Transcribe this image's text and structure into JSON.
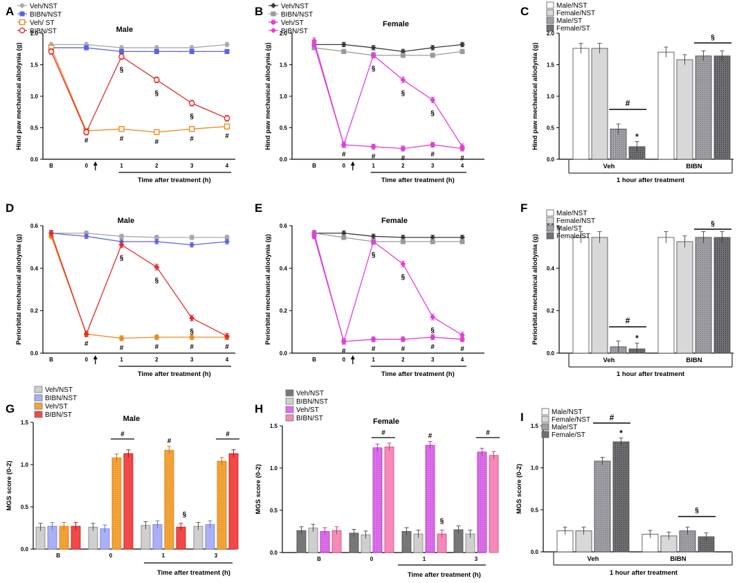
{
  "colors": {
    "veh_nst": "#a8a8a8",
    "bibn_nst_male": "#5a64e8",
    "veh_st_male": "#f08a1c",
    "bibn_st_male": "#e42a2a",
    "veh_nst_female": "#3a3a3a",
    "bibn_nst_female": "#9a9a9a",
    "st_female": "#e040d8",
    "bar_male_nst": "#ffffff",
    "bar_female_nst": "#d6d6d6",
    "bar_male_st": "#9a9aa0",
    "bar_female_st": "#6a6a6e",
    "mgs_veh_nst_m": "#cfcfcf",
    "mgs_bibn_nst_m": "#aab0f5",
    "mgs_veh_st_m": "#f5a63a",
    "mgs_bibn_st_m": "#f24848",
    "mgs_veh_nst_f": "#777777",
    "mgs_bibn_nst_f": "#cfcfcf",
    "mgs_veh_st_f": "#e070ec",
    "mgs_bibn_st_f": "#f58ab8"
  },
  "chart_data": [
    {
      "id": "A",
      "type": "line",
      "title": "Male",
      "ylabel": "Hind paw mechanical allodynia (g)",
      "xlabel": "Time after treatment (h)",
      "categories": [
        "B",
        "0",
        "1",
        "2",
        "3",
        "4"
      ],
      "ylim": [
        0,
        2.0
      ],
      "yticks": [
        "0.0",
        "0.5",
        "1.0",
        "1.5",
        "2.0"
      ],
      "series": [
        {
          "name": "Veh/NST",
          "values": [
            1.82,
            1.82,
            1.77,
            1.77,
            1.77,
            1.82
          ]
        },
        {
          "name": "BIBN/NST",
          "values": [
            1.77,
            1.77,
            1.71,
            1.71,
            1.71,
            1.71
          ]
        },
        {
          "name": "Veh/ ST",
          "values": [
            1.77,
            0.45,
            0.48,
            0.43,
            0.48,
            0.52
          ]
        },
        {
          "name": "BIBN/ST",
          "values": [
            1.71,
            0.43,
            1.63,
            1.26,
            0.89,
            0.65
          ]
        }
      ],
      "annotations": {
        "hash": [
          "#",
          "#",
          "#",
          "#",
          "#"
        ],
        "section": [
          "§",
          "§",
          "§"
        ]
      }
    },
    {
      "id": "B",
      "type": "line",
      "title": "Female",
      "ylabel": "Hind paw mechanical allodynia (g)",
      "xlabel": "Time after treatment (h)",
      "categories": [
        "B",
        "0",
        "1",
        "2",
        "3",
        "4"
      ],
      "ylim": [
        0,
        2.0
      ],
      "yticks": [
        "0.0",
        "0.5",
        "1.0",
        "1.5",
        "2.0"
      ],
      "series": [
        {
          "name": "Veh/NST",
          "values": [
            1.82,
            1.82,
            1.77,
            1.71,
            1.77,
            1.82
          ]
        },
        {
          "name": "BIBN/NST",
          "values": [
            1.77,
            1.71,
            1.65,
            1.65,
            1.65,
            1.71
          ]
        },
        {
          "name": "Veh/ST",
          "values": [
            1.82,
            0.23,
            0.2,
            0.17,
            0.23,
            0.17
          ]
        },
        {
          "name": "BIBN/ST",
          "values": [
            1.88,
            0.23,
            1.65,
            1.26,
            0.94,
            0.2
          ]
        }
      ],
      "annotations": {
        "hash": [
          "#",
          "#",
          "#",
          "#",
          "#"
        ],
        "section": [
          "§",
          "§",
          "§"
        ]
      }
    },
    {
      "id": "C",
      "type": "bar",
      "ylabel": "Hind paw mechanical allodynia (g)",
      "xlabel": "1 hour after treatment",
      "groups": [
        "Veh",
        "BIBN"
      ],
      "ylim": [
        0,
        2.0
      ],
      "yticks": [
        "0.0",
        "0.5",
        "1.0",
        "1.5",
        "2.0"
      ],
      "series": [
        {
          "name": "Male/NST",
          "values": [
            1.76,
            1.7
          ]
        },
        {
          "name": "Female/NST",
          "values": [
            1.76,
            1.58
          ]
        },
        {
          "name": "Male/ST",
          "values": [
            0.48,
            1.64
          ]
        },
        {
          "name": "Female/ST",
          "values": [
            0.2,
            1.64
          ]
        }
      ],
      "annotations": {
        "hash": "#",
        "star": "*",
        "section": "§"
      }
    },
    {
      "id": "D",
      "type": "line",
      "title": "Male",
      "ylabel": "Periorbital mechanical allodynia (g)",
      "xlabel": "Time after treatment (h)",
      "categories": [
        "B",
        "0",
        "1",
        "2",
        "3",
        "4"
      ],
      "ylim": [
        0,
        0.6
      ],
      "yticks": [
        "0.0",
        "0.2",
        "0.4",
        "0.6"
      ],
      "series": [
        {
          "name": "Veh/NST",
          "values": [
            0.565,
            0.565,
            0.55,
            0.545,
            0.545,
            0.545
          ]
        },
        {
          "name": "BIBN/NST",
          "values": [
            0.565,
            0.55,
            0.525,
            0.525,
            0.51,
            0.525
          ]
        },
        {
          "name": "Veh/ST",
          "values": [
            0.55,
            0.09,
            0.07,
            0.075,
            0.075,
            0.075
          ]
        },
        {
          "name": "BIBN/ST",
          "values": [
            0.565,
            0.09,
            0.51,
            0.405,
            0.165,
            0.08
          ]
        }
      ],
      "annotations": {
        "hash": [
          "#",
          "#",
          "#",
          "#",
          "#"
        ],
        "section": [
          "§",
          "§",
          "§"
        ]
      }
    },
    {
      "id": "E",
      "type": "line",
      "title": "Female",
      "ylabel": "Periorbital mechanical allodynia (g)",
      "xlabel": "Time after treatment (h)",
      "categories": [
        "B",
        "0",
        "1",
        "2",
        "3",
        "4"
      ],
      "ylim": [
        0,
        0.6
      ],
      "yticks": [
        "0.0",
        "0.2",
        "0.4",
        "0.6"
      ],
      "series": [
        {
          "name": "Veh/NST",
          "values": [
            0.565,
            0.565,
            0.55,
            0.545,
            0.545,
            0.545
          ]
        },
        {
          "name": "BIBN/NST",
          "values": [
            0.565,
            0.545,
            0.525,
            0.525,
            0.525,
            0.525
          ]
        },
        {
          "name": "Veh/ST",
          "values": [
            0.55,
            0.055,
            0.065,
            0.065,
            0.075,
            0.065
          ]
        },
        {
          "name": "BIBN/ST",
          "values": [
            0.565,
            0.055,
            0.525,
            0.42,
            0.17,
            0.085
          ]
        }
      ],
      "annotations": {
        "hash": [
          "#",
          "#",
          "#",
          "#",
          "#"
        ],
        "section": [
          "§",
          "§",
          "§"
        ]
      }
    },
    {
      "id": "F",
      "type": "bar",
      "ylabel": "Periorbital mechanical allodynia (g)",
      "xlabel": "1 hour after treatment",
      "groups": [
        "Veh",
        "BIBN"
      ],
      "ylim": [
        0,
        0.6
      ],
      "yticks": [
        "0.0",
        "0.2",
        "0.4",
        "0.6"
      ],
      "series": [
        {
          "name": "Male/NST",
          "values": [
            0.545,
            0.545
          ]
        },
        {
          "name": "Female/NST",
          "values": [
            0.545,
            0.525
          ]
        },
        {
          "name": "Male/ST",
          "values": [
            0.03,
            0.545
          ]
        },
        {
          "name": "Female/ST",
          "values": [
            0.02,
            0.545
          ]
        }
      ],
      "annotations": {
        "hash": "#",
        "star": "*",
        "section": "§"
      }
    },
    {
      "id": "G",
      "type": "bar",
      "title": "Male",
      "ylabel": "MGS score (0-2)",
      "xlabel": "Time after treatment (h)",
      "groups": [
        "B",
        "0",
        "1",
        "3"
      ],
      "ylim": [
        0,
        1.5
      ],
      "yticks": [
        "0.0",
        "0.5",
        "1.0",
        "1.5"
      ],
      "series": [
        {
          "name": "Veh/NST",
          "values": [
            0.26,
            0.26,
            0.28,
            0.27
          ]
        },
        {
          "name": "BIBN/NST",
          "values": [
            0.27,
            0.24,
            0.29,
            0.29
          ]
        },
        {
          "name": "Veh/ST",
          "values": [
            0.27,
            1.08,
            1.17,
            1.04
          ]
        },
        {
          "name": "BIBN/ST",
          "values": [
            0.27,
            1.13,
            0.26,
            1.13
          ]
        }
      ],
      "annotations": {
        "hash": [
          "#",
          "#",
          "#"
        ],
        "section": "§"
      }
    },
    {
      "id": "H",
      "type": "bar",
      "title": "Female",
      "ylabel": "MGS score (0-2)",
      "xlabel": "Time after treatment (h)",
      "groups": [
        "B",
        "0",
        "1",
        "3"
      ],
      "ylim": [
        0,
        1.5
      ],
      "yticks": [
        "0.0",
        "0.5",
        "1.0",
        "1.5"
      ],
      "series": [
        {
          "name": "Veh/NST",
          "values": [
            0.26,
            0.23,
            0.25,
            0.27
          ]
        },
        {
          "name": "BIBN/NST",
          "values": [
            0.29,
            0.21,
            0.22,
            0.22
          ]
        },
        {
          "name": "Veh/ST",
          "values": [
            0.25,
            1.24,
            1.27,
            1.19
          ]
        },
        {
          "name": "BIBN/ST",
          "values": [
            0.26,
            1.25,
            0.22,
            1.15
          ]
        }
      ],
      "annotations": {
        "hash": [
          "#",
          "#",
          "#"
        ],
        "section": "§"
      }
    },
    {
      "id": "I",
      "type": "bar",
      "ylabel": "MGS score (0-2)",
      "xlabel": "1 hour after treatment",
      "groups": [
        "Veh",
        "BIBN"
      ],
      "ylim": [
        0,
        1.5
      ],
      "yticks": [
        "0.0",
        "0.5",
        "1.0",
        "1.5"
      ],
      "series": [
        {
          "name": "Male/NST",
          "values": [
            0.25,
            0.21
          ]
        },
        {
          "name": "Female/NST",
          "values": [
            0.25,
            0.19
          ]
        },
        {
          "name": "Male/ST",
          "values": [
            1.08,
            0.25
          ]
        },
        {
          "name": "Female/ST",
          "values": [
            1.31,
            0.18
          ]
        }
      ],
      "annotations": {
        "hash": "#",
        "star": "*",
        "section": "§"
      }
    }
  ]
}
